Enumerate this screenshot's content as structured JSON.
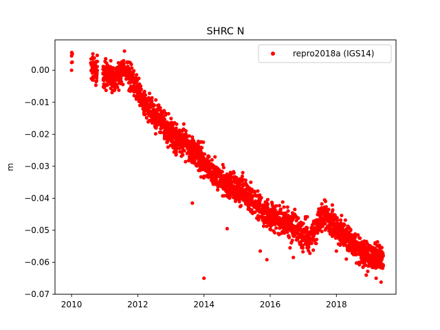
{
  "chart_data": {
    "type": "scatter",
    "title": "SHRC N",
    "xlabel": "",
    "ylabel": "m",
    "xlim": [
      2009.5,
      2019.8
    ],
    "ylim": [
      -0.07,
      0.0095
    ],
    "x_ticks": [
      2010,
      2012,
      2014,
      2016,
      2018
    ],
    "x_tick_labels": [
      "2010",
      "2012",
      "2014",
      "2016",
      "2018"
    ],
    "y_ticks": [
      0.0,
      -0.01,
      -0.02,
      -0.03,
      -0.04,
      -0.05,
      -0.06,
      -0.07
    ],
    "y_tick_labels": [
      "0.00",
      "−0.01",
      "−0.02",
      "−0.03",
      "−0.04",
      "−0.05",
      "−0.06",
      "−0.07"
    ],
    "grid": false,
    "legend_position": "top-right",
    "series": [
      {
        "name": "repro2018a (IGS14)",
        "color": "#ff0000",
        "marker": "circle",
        "trend": [
          [
            2010.0,
            0.003
          ],
          [
            2010.6,
            0.0005
          ],
          [
            2011.0,
            -0.001
          ],
          [
            2011.3,
            -0.003
          ],
          [
            2011.6,
            0.0005
          ],
          [
            2011.9,
            -0.004
          ],
          [
            2012.2,
            -0.011
          ],
          [
            2012.5,
            -0.014
          ],
          [
            2012.8,
            -0.017
          ],
          [
            2013.1,
            -0.021
          ],
          [
            2013.4,
            -0.023
          ],
          [
            2013.7,
            -0.025
          ],
          [
            2014.0,
            -0.029
          ],
          [
            2014.3,
            -0.032
          ],
          [
            2014.6,
            -0.035
          ],
          [
            2014.9,
            -0.037
          ],
          [
            2015.2,
            -0.038
          ],
          [
            2015.5,
            -0.041
          ],
          [
            2015.8,
            -0.044
          ],
          [
            2016.1,
            -0.046
          ],
          [
            2016.4,
            -0.047
          ],
          [
            2016.7,
            -0.049
          ],
          [
            2017.0,
            -0.052
          ],
          [
            2017.3,
            -0.051
          ],
          [
            2017.6,
            -0.045
          ],
          [
            2017.9,
            -0.048
          ],
          [
            2018.2,
            -0.051
          ],
          [
            2018.5,
            -0.054
          ],
          [
            2018.8,
            -0.057
          ],
          [
            2019.1,
            -0.058
          ],
          [
            2019.4,
            -0.059
          ]
        ],
        "outliers": [
          [
            2010.0,
            0.0045
          ],
          [
            2010.0,
            0.0
          ],
          [
            2011.6,
            0.006
          ],
          [
            2013.65,
            -0.0415
          ],
          [
            2014.0,
            -0.065
          ],
          [
            2014.7,
            -0.0495
          ],
          [
            2016.6,
            -0.0555
          ],
          [
            2016.7,
            -0.0585
          ],
          [
            2017.2,
            -0.0572
          ],
          [
            2018.0,
            -0.0565
          ],
          [
            2018.3,
            -0.059
          ],
          [
            2018.9,
            -0.064
          ],
          [
            2019.35,
            -0.0662
          ],
          [
            2019.2,
            -0.065
          ],
          [
            2015.7,
            -0.0565
          ],
          [
            2015.9,
            -0.0592
          ]
        ]
      }
    ]
  }
}
